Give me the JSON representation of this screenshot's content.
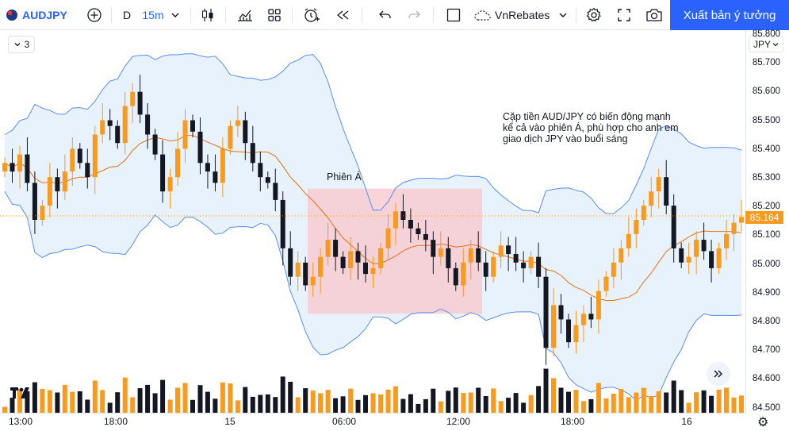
{
  "toolbar": {
    "symbol": "AUDJPY",
    "interval_period": "D",
    "interval": "15m",
    "broker": "VnRebates",
    "publish_label": "Xuất bản ý tưởng"
  },
  "panel": {
    "collapse_count": "3"
  },
  "price_axis": {
    "currency": "JPY",
    "ticks": [
      "85.800",
      "85.700",
      "85.600",
      "85.500",
      "85.400",
      "85.300",
      "85.200",
      "85.100",
      "85.000",
      "84.900",
      "84.800",
      "84.700",
      "84.600",
      "84.500"
    ],
    "last_price": "85.164"
  },
  "time_axis": {
    "labels": [
      "13:00",
      "18:00",
      "15",
      "06:00",
      "12:00",
      "18:00",
      "16"
    ]
  },
  "annotations": {
    "note_lines": [
      "Cặp tiền AUD/JPY có biến động mạnh",
      "kể cả vào phiên Á, phù hợp cho anh em",
      "giao dịch JPY vào buổi sáng"
    ],
    "session_label": "Phiên Á"
  },
  "colors": {
    "up": "#f79a1e",
    "down": "#131722",
    "band": "#5b8def",
    "band_fill": "#e8f2fc",
    "ma": "#e8711a",
    "session_fill": "#f9c6cc",
    "accent": "#2962ff"
  },
  "chart_data": {
    "type": "candlestick",
    "series_name": "",
    "ylim": [
      84.5,
      85.8
    ],
    "x_labels": [
      "13:00",
      "18:00",
      "15",
      "06:00",
      "12:00",
      "18:00",
      "16"
    ],
    "close": [
      85.35,
      85.32,
      85.38,
      85.28,
      85.15,
      85.2,
      85.3,
      85.25,
      85.32,
      85.4,
      85.35,
      85.3,
      85.45,
      85.5,
      85.48,
      85.42,
      85.55,
      85.6,
      85.52,
      85.45,
      85.38,
      85.25,
      85.3,
      85.4,
      85.5,
      85.46,
      85.35,
      85.32,
      85.28,
      85.4,
      85.48,
      85.5,
      85.42,
      85.35,
      85.3,
      85.28,
      85.22,
      85.05,
      84.95,
      85.0,
      84.92,
      84.95,
      85.02,
      85.08,
      85.02,
      84.98,
      85.04,
      85.0,
      84.96,
      84.98,
      85.05,
      85.12,
      85.18,
      85.15,
      85.12,
      85.1,
      85.08,
      85.02,
      85.05,
      84.98,
      84.92,
      85.0,
      85.05,
      85.0,
      84.95,
      85.02,
      85.06,
      85.03,
      85.0,
      84.98,
      85.02,
      84.95,
      84.7,
      84.85,
      84.8,
      84.72,
      84.78,
      84.82,
      84.8,
      84.9,
      84.95,
      85.0,
      85.05,
      85.1,
      85.15,
      85.2,
      85.25,
      85.3,
      85.2,
      85.05,
      85.0,
      85.02,
      85.08,
      85.04,
      84.98,
      85.05,
      85.1,
      85.14,
      85.16
    ],
    "bollinger": {
      "upper": "shown",
      "lower": "shown",
      "middle": "shown"
    }
  }
}
